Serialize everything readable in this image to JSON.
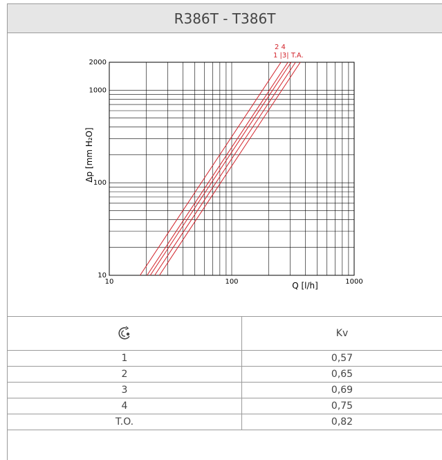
{
  "header": {
    "title": "R386T - T386T"
  },
  "chart_data": {
    "type": "line",
    "xlabel": "Q [l/h]",
    "ylabel": "Δp [mm H₂O]",
    "xscale": "log",
    "yscale": "log",
    "xlim": [
      10,
      1000
    ],
    "ylim": [
      10,
      2000
    ],
    "x_ticks": [
      "10",
      "100",
      "1000"
    ],
    "y_ticks": [
      "10",
      "100",
      "1000",
      "2000"
    ],
    "grid": true,
    "line_color": "#d2232a",
    "curve_labels_top": [
      "2",
      "4"
    ],
    "curve_labels_bottom": [
      "1",
      "3",
      "T.A."
    ],
    "series": [
      {
        "name": "1",
        "kv": 0.57
      },
      {
        "name": "2",
        "kv": 0.65
      },
      {
        "name": "3",
        "kv": 0.69
      },
      {
        "name": "4",
        "kv": 0.75
      },
      {
        "name": "T.A.",
        "kv": 0.82
      }
    ]
  },
  "table": {
    "col1_header_icon": "turns-setting-icon",
    "col2_header": "Kv",
    "rows": [
      {
        "setting": "1",
        "kv": "0,57"
      },
      {
        "setting": "2",
        "kv": "0,65"
      },
      {
        "setting": "3",
        "kv": "0,69"
      },
      {
        "setting": "4",
        "kv": "0,75"
      },
      {
        "setting": "T.O.",
        "kv": "0,82"
      }
    ]
  }
}
